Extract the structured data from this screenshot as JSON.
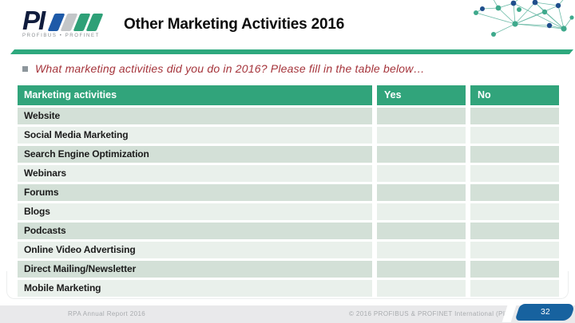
{
  "slide": {
    "logo": {
      "brand": "PI",
      "tagline": "PROFIBUS • PROFINET"
    },
    "title": "Other Marketing Activities 2016",
    "question": "What marketing activities did you do in 2016? Please fill in the table below…"
  },
  "table": {
    "columns": [
      "Marketing activities",
      "Yes",
      "No"
    ],
    "rows": [
      "Website",
      "Social Media Marketing",
      "Search Engine Optimization",
      "Webinars",
      "Forums",
      "Blogs",
      "Podcasts",
      "Online Video Advertising",
      "Direct Mailing/Newsletter",
      "Mobile Marketing"
    ]
  },
  "footer": {
    "report": "RPA Annual Report 2016",
    "copyright": "© 2016   PROFIBUS & PROFINET International (PI)",
    "page": "32"
  },
  "colors": {
    "header-green": "#31A47B",
    "divider-green": "#2EA97E",
    "band-dark": "#D3E0D7",
    "band-light": "#E9F0EB",
    "question-red": "#A5343B",
    "badge-blue": "#17629F",
    "logo-navy": "#101C3D",
    "logo-blue": "#1E5AA8",
    "logo-gray": "#C3C6C8",
    "logo-green": "#2EA077",
    "footer-gray": "#E9E9EB",
    "footer-text": "#A8ABAE"
  }
}
